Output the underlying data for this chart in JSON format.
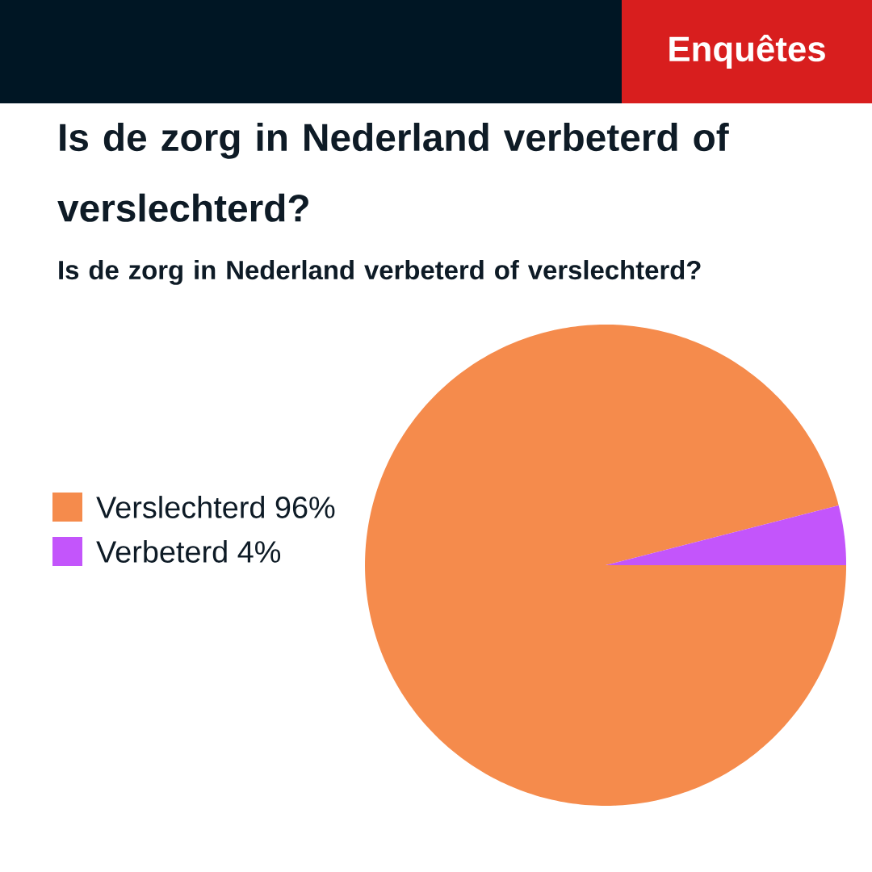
{
  "chart_data": {
    "type": "pie",
    "title": "Is de zorg in Nederland verbeterd of verslechterd?",
    "subtitle": "Is de zorg in Nederland verbeterd of verslechterd?",
    "annotations": [
      "Enquêtes"
    ],
    "categories": [
      "Verslechterd 96%",
      "Verbeterd 4%"
    ],
    "values": [
      96,
      4
    ],
    "colors": [
      "#f58b4c",
      "#c355fb"
    ],
    "legend": "left"
  }
}
